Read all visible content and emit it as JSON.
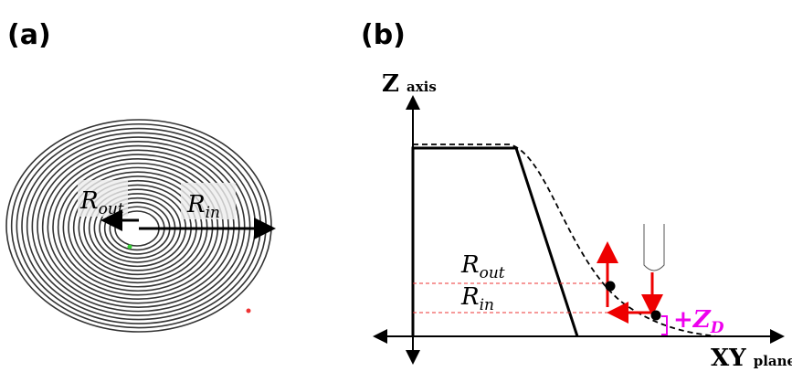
{
  "panel_a": {
    "label": "(a)",
    "r_out": {
      "main": "R",
      "sub": "out"
    },
    "r_in": {
      "main": "R",
      "sub": "in"
    }
  },
  "panel_b": {
    "label": "(b)",
    "z_axis": {
      "main": "Z",
      "sub": "axis"
    },
    "xy_axis": {
      "main": "XY",
      "sub": "plane"
    },
    "r_out": {
      "main": "R",
      "sub": "out"
    },
    "r_in": {
      "main": "R",
      "sub": "in"
    },
    "zd": {
      "main": "+Z",
      "sub": "D"
    }
  }
}
